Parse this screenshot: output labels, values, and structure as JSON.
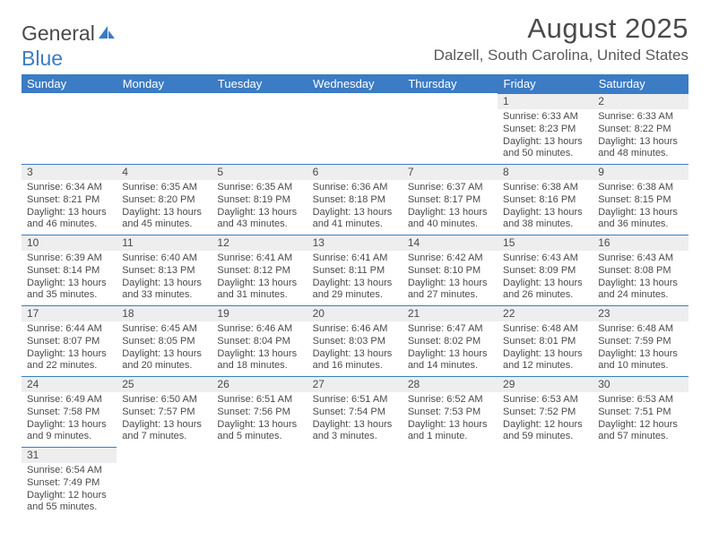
{
  "logo": {
    "word1": "General",
    "word2": "Blue"
  },
  "title": "August 2025",
  "location": "Dalzell, South Carolina, United States",
  "colors": {
    "header_bg": "#3b7cc4",
    "header_text": "#ffffff",
    "daynum_bg": "#eeeeee",
    "daynum_border": "#3b7cc4",
    "text": "#4a4a4a",
    "page_bg": "#ffffff"
  },
  "weekdays": [
    "Sunday",
    "Monday",
    "Tuesday",
    "Wednesday",
    "Thursday",
    "Friday",
    "Saturday"
  ],
  "weeks": [
    [
      null,
      null,
      null,
      null,
      null,
      {
        "n": "1",
        "sr": "Sunrise: 6:33 AM",
        "ss": "Sunset: 8:23 PM",
        "dl1": "Daylight: 13 hours",
        "dl2": "and 50 minutes."
      },
      {
        "n": "2",
        "sr": "Sunrise: 6:33 AM",
        "ss": "Sunset: 8:22 PM",
        "dl1": "Daylight: 13 hours",
        "dl2": "and 48 minutes."
      }
    ],
    [
      {
        "n": "3",
        "sr": "Sunrise: 6:34 AM",
        "ss": "Sunset: 8:21 PM",
        "dl1": "Daylight: 13 hours",
        "dl2": "and 46 minutes."
      },
      {
        "n": "4",
        "sr": "Sunrise: 6:35 AM",
        "ss": "Sunset: 8:20 PM",
        "dl1": "Daylight: 13 hours",
        "dl2": "and 45 minutes."
      },
      {
        "n": "5",
        "sr": "Sunrise: 6:35 AM",
        "ss": "Sunset: 8:19 PM",
        "dl1": "Daylight: 13 hours",
        "dl2": "and 43 minutes."
      },
      {
        "n": "6",
        "sr": "Sunrise: 6:36 AM",
        "ss": "Sunset: 8:18 PM",
        "dl1": "Daylight: 13 hours",
        "dl2": "and 41 minutes."
      },
      {
        "n": "7",
        "sr": "Sunrise: 6:37 AM",
        "ss": "Sunset: 8:17 PM",
        "dl1": "Daylight: 13 hours",
        "dl2": "and 40 minutes."
      },
      {
        "n": "8",
        "sr": "Sunrise: 6:38 AM",
        "ss": "Sunset: 8:16 PM",
        "dl1": "Daylight: 13 hours",
        "dl2": "and 38 minutes."
      },
      {
        "n": "9",
        "sr": "Sunrise: 6:38 AM",
        "ss": "Sunset: 8:15 PM",
        "dl1": "Daylight: 13 hours",
        "dl2": "and 36 minutes."
      }
    ],
    [
      {
        "n": "10",
        "sr": "Sunrise: 6:39 AM",
        "ss": "Sunset: 8:14 PM",
        "dl1": "Daylight: 13 hours",
        "dl2": "and 35 minutes."
      },
      {
        "n": "11",
        "sr": "Sunrise: 6:40 AM",
        "ss": "Sunset: 8:13 PM",
        "dl1": "Daylight: 13 hours",
        "dl2": "and 33 minutes."
      },
      {
        "n": "12",
        "sr": "Sunrise: 6:41 AM",
        "ss": "Sunset: 8:12 PM",
        "dl1": "Daylight: 13 hours",
        "dl2": "and 31 minutes."
      },
      {
        "n": "13",
        "sr": "Sunrise: 6:41 AM",
        "ss": "Sunset: 8:11 PM",
        "dl1": "Daylight: 13 hours",
        "dl2": "and 29 minutes."
      },
      {
        "n": "14",
        "sr": "Sunrise: 6:42 AM",
        "ss": "Sunset: 8:10 PM",
        "dl1": "Daylight: 13 hours",
        "dl2": "and 27 minutes."
      },
      {
        "n": "15",
        "sr": "Sunrise: 6:43 AM",
        "ss": "Sunset: 8:09 PM",
        "dl1": "Daylight: 13 hours",
        "dl2": "and 26 minutes."
      },
      {
        "n": "16",
        "sr": "Sunrise: 6:43 AM",
        "ss": "Sunset: 8:08 PM",
        "dl1": "Daylight: 13 hours",
        "dl2": "and 24 minutes."
      }
    ],
    [
      {
        "n": "17",
        "sr": "Sunrise: 6:44 AM",
        "ss": "Sunset: 8:07 PM",
        "dl1": "Daylight: 13 hours",
        "dl2": "and 22 minutes."
      },
      {
        "n": "18",
        "sr": "Sunrise: 6:45 AM",
        "ss": "Sunset: 8:05 PM",
        "dl1": "Daylight: 13 hours",
        "dl2": "and 20 minutes."
      },
      {
        "n": "19",
        "sr": "Sunrise: 6:46 AM",
        "ss": "Sunset: 8:04 PM",
        "dl1": "Daylight: 13 hours",
        "dl2": "and 18 minutes."
      },
      {
        "n": "20",
        "sr": "Sunrise: 6:46 AM",
        "ss": "Sunset: 8:03 PM",
        "dl1": "Daylight: 13 hours",
        "dl2": "and 16 minutes."
      },
      {
        "n": "21",
        "sr": "Sunrise: 6:47 AM",
        "ss": "Sunset: 8:02 PM",
        "dl1": "Daylight: 13 hours",
        "dl2": "and 14 minutes."
      },
      {
        "n": "22",
        "sr": "Sunrise: 6:48 AM",
        "ss": "Sunset: 8:01 PM",
        "dl1": "Daylight: 13 hours",
        "dl2": "and 12 minutes."
      },
      {
        "n": "23",
        "sr": "Sunrise: 6:48 AM",
        "ss": "Sunset: 7:59 PM",
        "dl1": "Daylight: 13 hours",
        "dl2": "and 10 minutes."
      }
    ],
    [
      {
        "n": "24",
        "sr": "Sunrise: 6:49 AM",
        "ss": "Sunset: 7:58 PM",
        "dl1": "Daylight: 13 hours",
        "dl2": "and 9 minutes."
      },
      {
        "n": "25",
        "sr": "Sunrise: 6:50 AM",
        "ss": "Sunset: 7:57 PM",
        "dl1": "Daylight: 13 hours",
        "dl2": "and 7 minutes."
      },
      {
        "n": "26",
        "sr": "Sunrise: 6:51 AM",
        "ss": "Sunset: 7:56 PM",
        "dl1": "Daylight: 13 hours",
        "dl2": "and 5 minutes."
      },
      {
        "n": "27",
        "sr": "Sunrise: 6:51 AM",
        "ss": "Sunset: 7:54 PM",
        "dl1": "Daylight: 13 hours",
        "dl2": "and 3 minutes."
      },
      {
        "n": "28",
        "sr": "Sunrise: 6:52 AM",
        "ss": "Sunset: 7:53 PM",
        "dl1": "Daylight: 13 hours",
        "dl2": "and 1 minute."
      },
      {
        "n": "29",
        "sr": "Sunrise: 6:53 AM",
        "ss": "Sunset: 7:52 PM",
        "dl1": "Daylight: 12 hours",
        "dl2": "and 59 minutes."
      },
      {
        "n": "30",
        "sr": "Sunrise: 6:53 AM",
        "ss": "Sunset: 7:51 PM",
        "dl1": "Daylight: 12 hours",
        "dl2": "and 57 minutes."
      }
    ],
    [
      {
        "n": "31",
        "sr": "Sunrise: 6:54 AM",
        "ss": "Sunset: 7:49 PM",
        "dl1": "Daylight: 12 hours",
        "dl2": "and 55 minutes."
      },
      null,
      null,
      null,
      null,
      null,
      null
    ]
  ]
}
